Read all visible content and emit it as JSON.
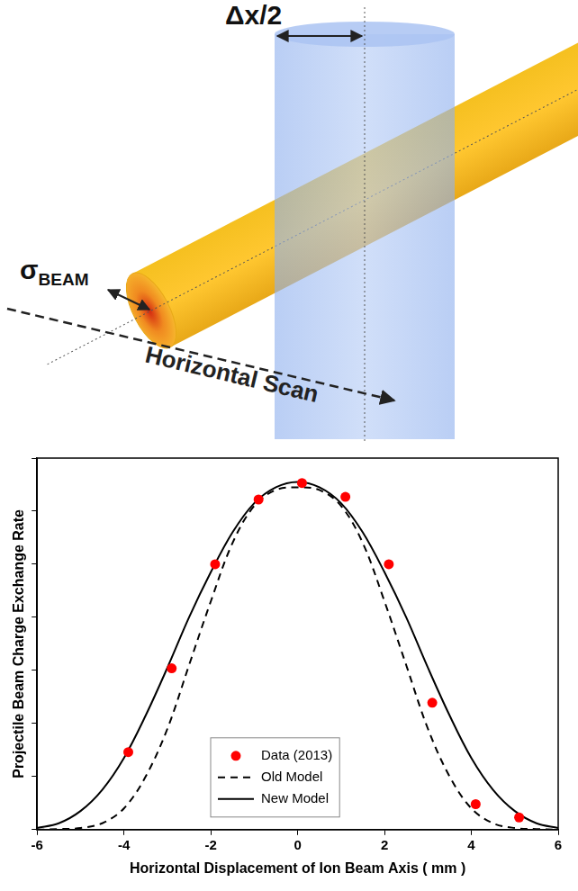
{
  "diagram": {
    "delta_label": "Δx/2",
    "sigma_label": {
      "symbol": "σ",
      "subscript": "BEAM"
    },
    "scan_label": "Horizontal Scan"
  },
  "chart_data": {
    "type": "scatter",
    "x_label": "Horizontal Displacement of Ion Beam Axis ( mm )",
    "y_label": "Projectile Beam Charge Exchange Rate",
    "xlim": [
      -6,
      6
    ],
    "xticks": [
      -6,
      -4,
      -2,
      0,
      2,
      4,
      6
    ],
    "ylim": [
      0,
      7
    ],
    "yticks": [
      0,
      1,
      2,
      3,
      4,
      5,
      6,
      7
    ],
    "tick_labels": "x",
    "grid": false,
    "legend": "bottom",
    "series": [
      {
        "name": "Data (2013)",
        "type": "scatter",
        "color": "#ff0000",
        "marker": "circle",
        "line_style": "none",
        "x": [
          -3.9,
          -2.9,
          -1.9,
          -0.9,
          0.1,
          1.1,
          2.1,
          3.1,
          4.1,
          5.1
        ],
        "values": [
          1.46,
          3.04,
          5.0,
          6.22,
          6.53,
          6.27,
          5.0,
          2.39,
          0.48,
          0.23
        ]
      },
      {
        "name": "Old Model",
        "type": "line",
        "color": "#000000",
        "marker": "none",
        "line_style": "dashed",
        "x": [
          -6,
          -5.5,
          -5,
          -4.5,
          -4,
          -3.5,
          -3,
          -2.5,
          -2,
          -1.5,
          -1,
          -0.5,
          0,
          0.5,
          1,
          1.5,
          2,
          2.5,
          3,
          3.5,
          4,
          4.5,
          5,
          5.5,
          6
        ],
        "values": [
          0,
          0.01,
          0.03,
          0.12,
          0.4,
          1.0,
          1.9,
          3.1,
          4.3,
          5.4,
          6.1,
          6.4,
          6.45,
          6.4,
          6.1,
          5.4,
          4.3,
          3.1,
          1.9,
          1.0,
          0.4,
          0.12,
          0.03,
          0.01,
          0
        ]
      },
      {
        "name": "New Model",
        "type": "line",
        "color": "#000000",
        "marker": "none",
        "line_style": "solid",
        "x": [
          -6,
          -5.5,
          -5,
          -4.5,
          -4,
          -3.5,
          -3,
          -2.5,
          -2,
          -1.5,
          -1,
          -0.5,
          0,
          0.5,
          1,
          1.5,
          2,
          2.5,
          3,
          3.5,
          4,
          4.5,
          5,
          5.5,
          6
        ],
        "values": [
          0.03,
          0.12,
          0.35,
          0.75,
          1.35,
          2.15,
          3.05,
          4.0,
          4.85,
          5.6,
          6.15,
          6.45,
          6.55,
          6.45,
          6.15,
          5.6,
          4.85,
          4.0,
          3.05,
          2.15,
          1.35,
          0.75,
          0.35,
          0.12,
          0.03
        ]
      }
    ]
  }
}
